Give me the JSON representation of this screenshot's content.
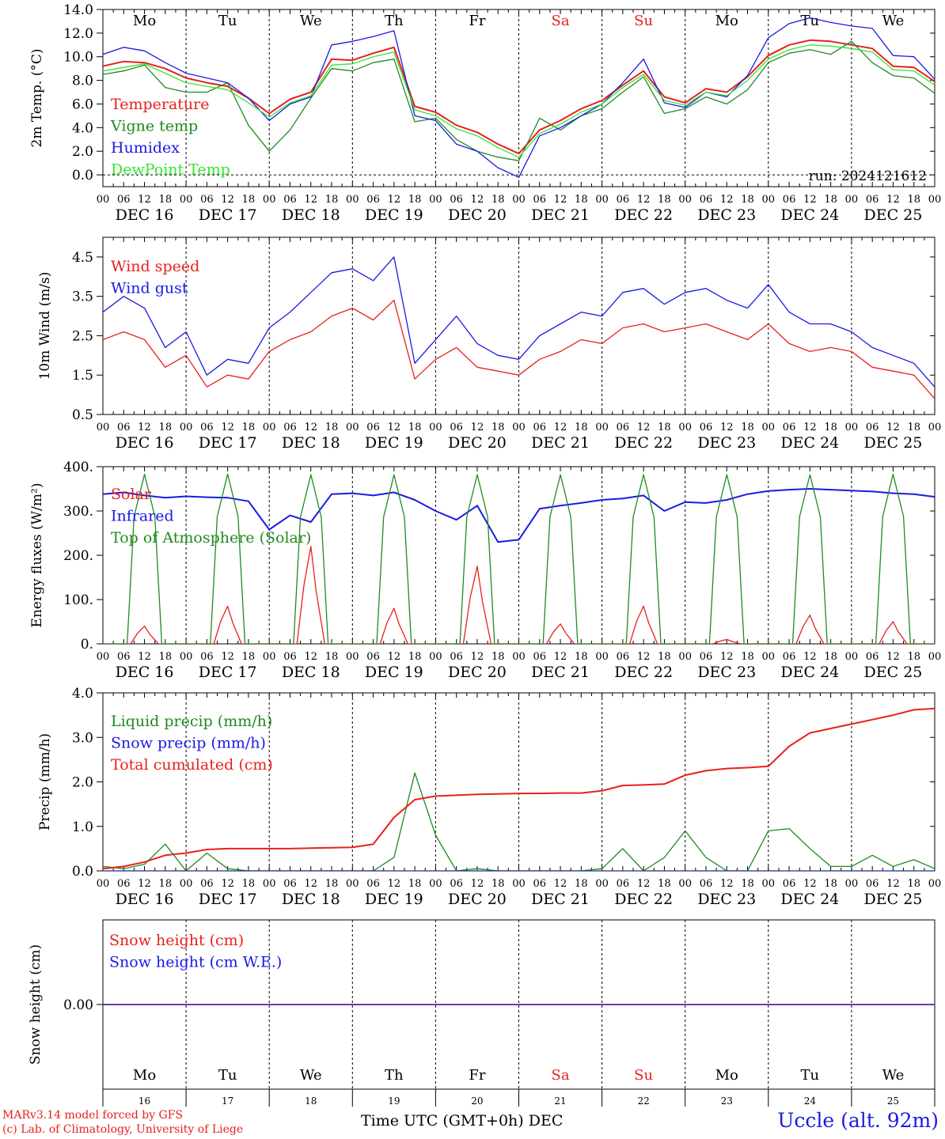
{
  "colors": {
    "red": "#e8201c",
    "darkgreen": "#1f8a1f",
    "blue": "#1a1ae6",
    "lightgreen": "#33e633",
    "ink": "#000000"
  },
  "hour_ticks": [
    "00",
    "06",
    "12",
    "18"
  ],
  "end_tick": "00",
  "dates": [
    "DEC 16",
    "DEC 17",
    "DEC 18",
    "DEC 19",
    "DEC 20",
    "DEC 21",
    "DEC 22",
    "DEC 23",
    "DEC 24",
    "DEC 25"
  ],
  "weekdays": [
    "Mo",
    "Tu",
    "We",
    "Th",
    "Fr",
    "Sa",
    "Su",
    "Mo",
    "Tu",
    "We"
  ],
  "weekend_index": [
    5,
    6
  ],
  "day_numbers": [
    "16",
    "17",
    "18",
    "19",
    "20",
    "21",
    "22",
    "23",
    "24",
    "25"
  ],
  "footer": {
    "model_line": "MARv3.14 model forced by GFS",
    "copyright_line": "(c) Lab. of Climatology, University of Liege",
    "xlabel": "Time UTC (GMT+0h)",
    "month": "DEC",
    "station": "Uccle (alt. 92m)"
  },
  "chart_data": [
    {
      "type": "line",
      "ylabel": "2m Temp. (°C)",
      "ylim": [
        -1,
        14
      ],
      "yticks": [
        "0.0",
        "2.0",
        "4.0",
        "6.0",
        "8.0",
        "10.0",
        "12.0",
        "14.0"
      ],
      "run_label": "run: 2024121612",
      "x_hours": [
        0,
        6,
        12,
        18,
        24,
        30,
        36,
        42,
        48,
        54,
        60,
        66,
        72,
        78,
        84,
        90,
        96,
        102,
        108,
        114,
        120,
        126,
        132,
        138,
        144,
        150,
        156,
        162,
        168,
        174,
        180,
        186,
        192,
        198,
        204,
        210,
        216,
        222,
        228,
        234,
        240
      ],
      "series": [
        {
          "name": "Temperature",
          "color": "#e8201c",
          "values": [
            9.2,
            9.6,
            9.5,
            9.0,
            8.2,
            7.8,
            7.5,
            6.5,
            5.2,
            6.4,
            7.0,
            9.8,
            9.7,
            10.3,
            10.8,
            5.8,
            5.3,
            4.2,
            3.6,
            2.6,
            1.8,
            3.8,
            4.6,
            5.6,
            6.3,
            7.6,
            8.8,
            6.6,
            6.1,
            7.3,
            7.0,
            8.3,
            10.1,
            11.0,
            11.4,
            11.3,
            11.0,
            10.7,
            9.2,
            9.1,
            7.9
          ]
        },
        {
          "name": "Vigne temp",
          "color": "#1f8a1f",
          "values": [
            8.5,
            8.8,
            9.3,
            7.4,
            7.0,
            7.0,
            7.8,
            4.2,
            2.0,
            3.8,
            6.5,
            9.0,
            8.8,
            9.5,
            9.8,
            4.5,
            4.8,
            3.0,
            2.0,
            1.5,
            1.2,
            4.8,
            3.8,
            5.0,
            5.6,
            7.0,
            8.3,
            5.2,
            5.6,
            6.6,
            6.0,
            7.2,
            9.5,
            10.3,
            10.6,
            10.2,
            11.3,
            9.5,
            8.4,
            8.2,
            6.9
          ]
        },
        {
          "name": "Humidex",
          "color": "#1a1ae6",
          "values": [
            10.2,
            10.8,
            10.5,
            9.5,
            8.6,
            8.2,
            7.8,
            6.5,
            4.6,
            6.0,
            6.6,
            11.0,
            11.3,
            11.7,
            12.2,
            5.0,
            4.6,
            2.6,
            2.0,
            0.6,
            -0.2,
            3.3,
            4.0,
            5.0,
            6.0,
            7.8,
            9.8,
            6.1,
            5.7,
            7.0,
            6.6,
            8.4,
            11.6,
            12.8,
            13.3,
            12.9,
            12.6,
            12.4,
            10.1,
            10.0,
            8.1
          ]
        },
        {
          "name": "DewPoint Temp",
          "color": "#33e633",
          "values": [
            8.8,
            9.1,
            9.4,
            8.6,
            7.8,
            7.5,
            7.2,
            6.1,
            4.9,
            6.1,
            6.7,
            9.3,
            9.4,
            10.0,
            10.4,
            5.5,
            5.0,
            3.9,
            3.3,
            2.3,
            1.5,
            3.5,
            4.3,
            5.3,
            6.0,
            7.4,
            8.5,
            6.3,
            5.9,
            7.0,
            6.7,
            8.0,
            9.8,
            10.6,
            11.0,
            10.9,
            10.7,
            10.4,
            8.9,
            8.8,
            7.6
          ]
        }
      ]
    },
    {
      "type": "line",
      "ylabel": "10m Wind (m/s)",
      "ylim": [
        0.5,
        5.0
      ],
      "yticks": [
        "0.5",
        "1.5",
        "2.5",
        "3.5",
        "4.5"
      ],
      "x_hours": [
        0,
        6,
        12,
        18,
        24,
        30,
        36,
        42,
        48,
        54,
        60,
        66,
        72,
        78,
        84,
        90,
        96,
        102,
        108,
        114,
        120,
        126,
        132,
        138,
        144,
        150,
        156,
        162,
        168,
        174,
        180,
        186,
        192,
        198,
        204,
        210,
        216,
        222,
        228,
        234,
        240
      ],
      "series": [
        {
          "name": "Wind speed",
          "color": "#e8201c",
          "values": [
            2.4,
            2.6,
            2.4,
            1.7,
            2.0,
            1.2,
            1.5,
            1.4,
            2.1,
            2.4,
            2.6,
            3.0,
            3.2,
            2.9,
            3.4,
            1.4,
            1.9,
            2.2,
            1.7,
            1.6,
            1.5,
            1.9,
            2.1,
            2.4,
            2.3,
            2.7,
            2.8,
            2.6,
            2.7,
            2.8,
            2.6,
            2.4,
            2.8,
            2.3,
            2.1,
            2.2,
            2.1,
            1.7,
            1.6,
            1.5,
            0.9
          ]
        },
        {
          "name": "Wind gust",
          "color": "#1a1ae6",
          "values": [
            3.1,
            3.5,
            3.2,
            2.2,
            2.6,
            1.5,
            1.9,
            1.8,
            2.7,
            3.1,
            3.6,
            4.1,
            4.2,
            3.9,
            4.5,
            1.8,
            2.4,
            3.0,
            2.3,
            2.0,
            1.9,
            2.5,
            2.8,
            3.1,
            3.0,
            3.6,
            3.7,
            3.3,
            3.6,
            3.7,
            3.4,
            3.2,
            3.8,
            3.1,
            2.8,
            2.8,
            2.6,
            2.2,
            2.0,
            1.8,
            1.2
          ]
        }
      ]
    },
    {
      "type": "line",
      "ylabel": "Energy fluxes (W/m²)",
      "ylim": [
        0,
        400
      ],
      "yticks": [
        "0.",
        "100.",
        "200.",
        "300.",
        "400."
      ],
      "series": [
        {
          "name": "Solar",
          "color": "#e8201c",
          "kind": "daily_peaks",
          "peak_hours": [
            12,
            36,
            60,
            84,
            108,
            132,
            156,
            180,
            204,
            228
          ],
          "peaks": [
            40,
            85,
            220,
            80,
            175,
            45,
            85,
            10,
            65,
            50
          ]
        },
        {
          "name": "Infrared",
          "color": "#1a1ae6",
          "x_hours": [
            0,
            6,
            12,
            18,
            24,
            30,
            36,
            42,
            48,
            54,
            60,
            66,
            72,
            78,
            84,
            90,
            96,
            102,
            108,
            114,
            120,
            126,
            132,
            138,
            144,
            150,
            156,
            162,
            168,
            174,
            180,
            186,
            192,
            198,
            204,
            210,
            216,
            222,
            228,
            234,
            240
          ],
          "values": [
            338,
            342,
            335,
            330,
            333,
            331,
            330,
            322,
            258,
            290,
            275,
            338,
            340,
            335,
            342,
            325,
            300,
            280,
            312,
            230,
            235,
            305,
            312,
            318,
            325,
            328,
            335,
            300,
            320,
            318,
            325,
            338,
            345,
            348,
            350,
            348,
            346,
            344,
            340,
            338,
            332
          ]
        },
        {
          "name": "Top of Atmosphere (Solar)",
          "color": "#1f8a1f",
          "kind": "daily_peaks",
          "peak_hours": [
            12,
            36,
            60,
            84,
            108,
            132,
            156,
            180,
            204,
            228
          ],
          "peaks": [
            383,
            383,
            382,
            382,
            382,
            382,
            382,
            382,
            382,
            383
          ]
        }
      ]
    },
    {
      "type": "line",
      "ylabel": "Precip (mm/h)",
      "ylim": [
        0,
        4
      ],
      "yticks": [
        "0.0",
        "1.0",
        "2.0",
        "3.0",
        "4.0"
      ],
      "x_hours": [
        0,
        6,
        12,
        18,
        24,
        30,
        36,
        42,
        48,
        54,
        60,
        66,
        72,
        78,
        84,
        90,
        96,
        102,
        108,
        114,
        120,
        126,
        132,
        138,
        144,
        150,
        156,
        162,
        168,
        174,
        180,
        186,
        192,
        198,
        204,
        210,
        216,
        222,
        228,
        234,
        240
      ],
      "series": [
        {
          "name": "Liquid precip (mm/h)",
          "color": "#1f8a1f",
          "values": [
            0.1,
            0.05,
            0.15,
            0.6,
            0.0,
            0.4,
            0.05,
            0.0,
            0.0,
            0.0,
            0.0,
            0.0,
            0.0,
            0.0,
            0.3,
            2.2,
            0.8,
            0.0,
            0.05,
            0.0,
            0.0,
            0.0,
            0.0,
            0.0,
            0.05,
            0.5,
            0.0,
            0.3,
            0.9,
            0.3,
            0.0,
            0.0,
            0.9,
            0.95,
            0.5,
            0.1,
            0.1,
            0.35,
            0.1,
            0.25,
            0.05
          ]
        },
        {
          "name": "Snow precip (mm/h)",
          "color": "#1a1ae6",
          "values": [
            0.0,
            0.0,
            0.0,
            0.0,
            0.0,
            0.0,
            0.0,
            0.0,
            0.0,
            0.0,
            0.0,
            0.0,
            0.0,
            0.0,
            0.0,
            0.0,
            0.0,
            0.0,
            0.0,
            0.0,
            0.0,
            0.0,
            0.0,
            0.0,
            0.0,
            0.0,
            0.0,
            0.0,
            0.0,
            0.0,
            0.0,
            0.0,
            0.0,
            0.0,
            0.0,
            0.0,
            0.0,
            0.0,
            0.0,
            0.0,
            0.0
          ]
        },
        {
          "name": "Total cumulated (cm)",
          "color": "#e8201c",
          "values": [
            0.05,
            0.1,
            0.2,
            0.35,
            0.4,
            0.48,
            0.5,
            0.5,
            0.5,
            0.5,
            0.51,
            0.52,
            0.53,
            0.6,
            1.2,
            1.6,
            1.68,
            1.7,
            1.72,
            1.73,
            1.74,
            1.74,
            1.75,
            1.75,
            1.8,
            1.92,
            1.93,
            1.95,
            2.15,
            2.25,
            2.3,
            2.32,
            2.35,
            2.8,
            3.1,
            3.2,
            3.3,
            3.4,
            3.5,
            3.62,
            3.65
          ]
        }
      ]
    },
    {
      "type": "line",
      "ylabel": "Snow height (cm)",
      "ylim": [
        -1,
        1
      ],
      "yticks": [
        "0.00"
      ],
      "x_hours": [
        0,
        240
      ],
      "series": [
        {
          "name": "Snow height (cm)",
          "color": "#e8201c",
          "values": [
            0.0,
            0.0
          ]
        },
        {
          "name": "Snow height (cm W.E.)",
          "color": "#1a1ae6",
          "values": [
            0.0,
            0.0
          ]
        }
      ]
    }
  ]
}
